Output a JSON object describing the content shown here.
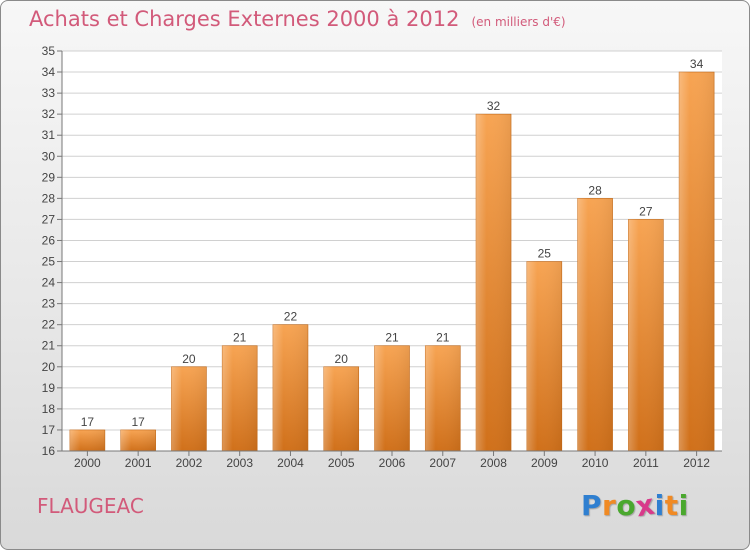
{
  "title": "Achats et Charges Externes 2000 à 2012",
  "unit": "(en milliers d'€)",
  "commune": "FLAUGEAC",
  "logo": {
    "text": "Proxiti",
    "letters": [
      "P",
      "r",
      "o",
      "x",
      "i",
      "t",
      "i"
    ],
    "colors": [
      "#2f7fd0",
      "#f08a24",
      "#4aa82e",
      "#d83a8a",
      "#2f7fd0",
      "#f08a24",
      "#4aa82e"
    ]
  },
  "chart_data": {
    "type": "bar",
    "categories": [
      "2000",
      "2001",
      "2002",
      "2003",
      "2004",
      "2005",
      "2006",
      "2007",
      "2008",
      "2009",
      "2010",
      "2011",
      "2012"
    ],
    "values": [
      17,
      17,
      20,
      21,
      22,
      20,
      21,
      21,
      32,
      25,
      28,
      27,
      34
    ],
    "ylim": [
      16,
      35
    ],
    "yticks": [
      "16",
      "17",
      "18",
      "19",
      "20",
      "21",
      "22",
      "23",
      "24",
      "25",
      "26",
      "27",
      "28",
      "29",
      "30",
      "31",
      "32",
      "33",
      "34",
      "35"
    ],
    "grid": true,
    "bar_color": "#f08a2c"
  }
}
